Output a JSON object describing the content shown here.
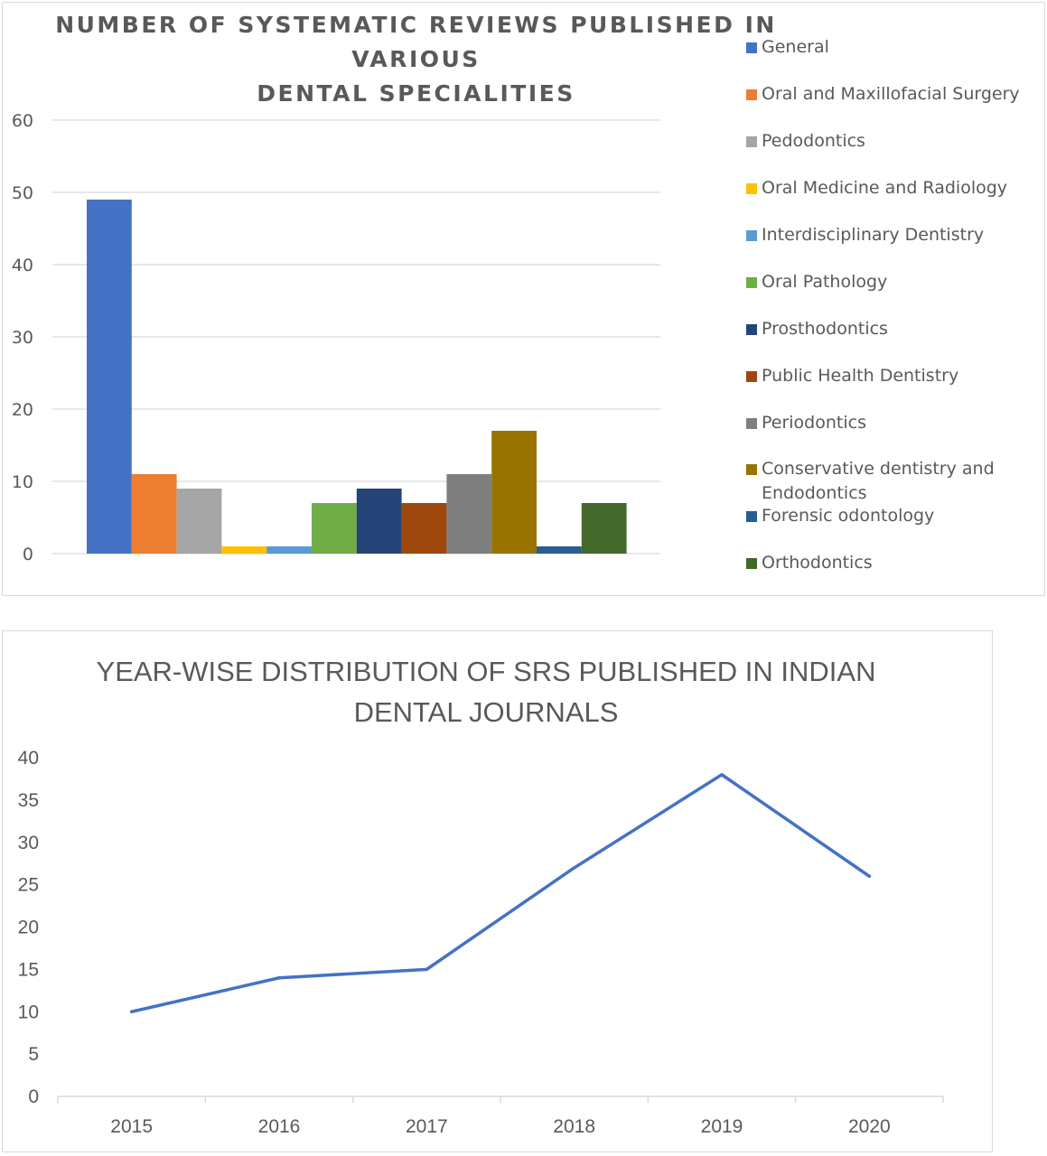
{
  "chart_data": [
    {
      "type": "bar",
      "title": "NUMBER OF SYSTEMATIC REVIEWS PUBLISHED IN VARIOUS DENTAL SPECIALITIES",
      "title_lines": [
        "NUMBER OF SYSTEMATIC REVIEWS PUBLISHED IN VARIOUS",
        "DENTAL SPECIALITIES"
      ],
      "xlabel": "",
      "ylabel": "",
      "ylim": [
        0,
        60
      ],
      "yticks": [
        "0",
        "10",
        "20",
        "30",
        "40",
        "50",
        "60"
      ],
      "grid": true,
      "legend_position": "right",
      "series": [
        {
          "name": "General",
          "value": 49,
          "color": "#4472C4"
        },
        {
          "name": "Oral and Maxillofacial Surgery",
          "value": 11,
          "color": "#ED7D31"
        },
        {
          "name": "Pedodontics",
          "value": 9,
          "color": "#A5A5A5"
        },
        {
          "name": "Oral Medicine and Radiology",
          "value": 1,
          "color": "#FFC000"
        },
        {
          "name": "Interdisciplinary Dentistry",
          "value": 1,
          "color": "#5B9BD5"
        },
        {
          "name": "Oral Pathology",
          "value": 7,
          "color": "#70AD47"
        },
        {
          "name": "Prosthodontics",
          "value": 9,
          "color": "#264478"
        },
        {
          "name": "Public Health Dentistry",
          "value": 7,
          "color": "#9E480E"
        },
        {
          "name": "Periodontics",
          "value": 11,
          "color": "#7F7F7F"
        },
        {
          "name": "Conservative dentistry and Endodontics",
          "value": 17,
          "color": "#997300"
        },
        {
          "name": "Forensic odontology",
          "value": 1,
          "color": "#255E91"
        },
        {
          "name": "Orthodontics",
          "value": 7,
          "color": "#43682B"
        }
      ]
    },
    {
      "type": "line",
      "title": "YEAR-WISE DISTRIBUTION OF SRS PUBLISHED IN INDIAN DENTAL JOURNALS",
      "title_lines": [
        "YEAR-WISE DISTRIBUTION OF SRS PUBLISHED IN INDIAN",
        "DENTAL JOURNALS"
      ],
      "xlabel": "",
      "ylabel": "",
      "categories": [
        "2015",
        "2016",
        "2017",
        "2018",
        "2019",
        "2020"
      ],
      "values": [
        10,
        14,
        15,
        27,
        38,
        26
      ],
      "ylim": [
        0,
        40
      ],
      "yticks": [
        "0",
        "5",
        "10",
        "15",
        "20",
        "25",
        "30",
        "35",
        "40"
      ],
      "grid": false,
      "line_color": "#4472C4"
    }
  ]
}
